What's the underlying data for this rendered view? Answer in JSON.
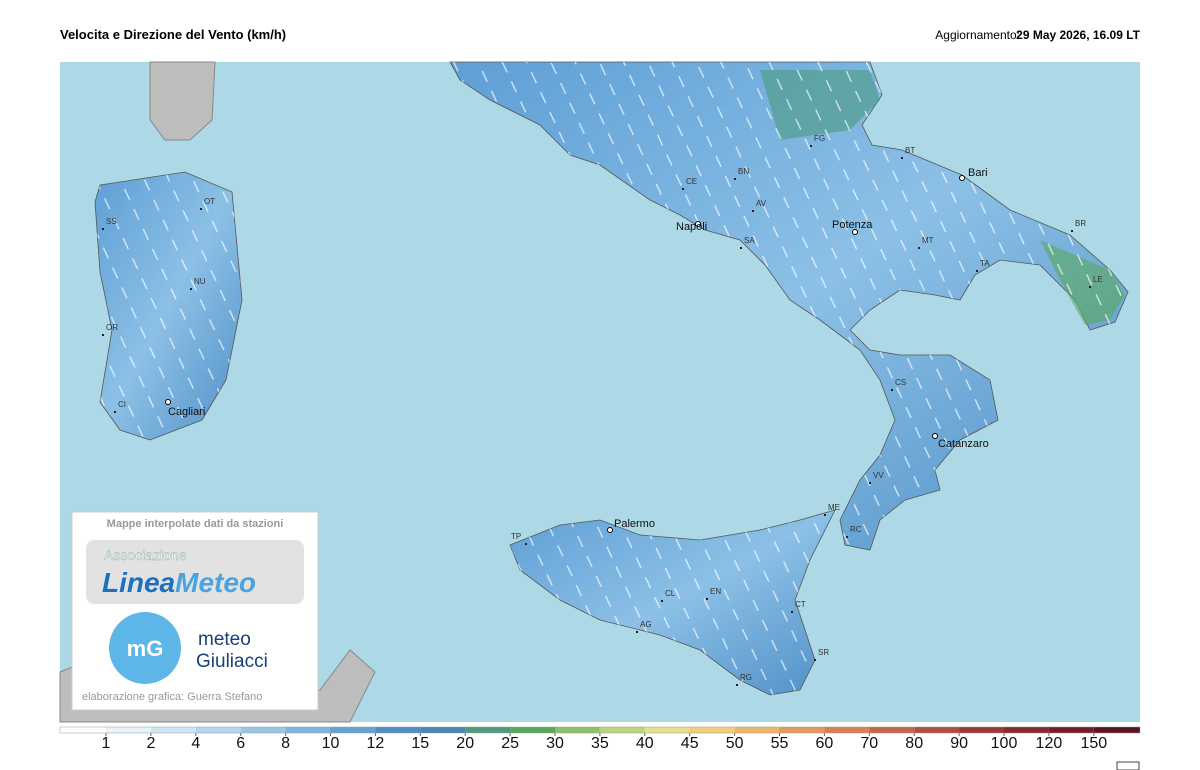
{
  "header": {
    "title": "Velocita e Direzione del Vento  (km/h)",
    "update_label": "Aggiornamento:",
    "update_time": "29 May 2026, 16.09 LT"
  },
  "cities": [
    "Napoli",
    "Potenza",
    "Bari",
    "Catanzaro",
    "Palermo",
    "Cagliari"
  ],
  "provinces": [
    "OT",
    "SS",
    "NU",
    "OR",
    "CI",
    "CE",
    "BN",
    "AV",
    "SA",
    "FG",
    "BT",
    "BR",
    "MT",
    "TA",
    "LE",
    "CS",
    "VV",
    "RC",
    "ME",
    "TP",
    "CL",
    "EN",
    "CT",
    "AG",
    "SR",
    "RG"
  ],
  "credits": {
    "caption": "Mappe interpolate dati da stazioni",
    "association": "Associazione",
    "logo1_a": "Linea",
    "logo1_b": "Meteo",
    "logo2_icon": "mG",
    "logo2_a": "meteo",
    "logo2_b": "Giuliacci",
    "author": "elaborazione grafica: Guerra Stefano"
  },
  "legend": {
    "ticks": [
      1,
      2,
      4,
      6,
      8,
      10,
      12,
      15,
      20,
      25,
      30,
      35,
      40,
      45,
      50,
      55,
      60,
      70,
      80,
      90,
      100,
      120,
      150
    ],
    "colors": [
      "#ffffff",
      "#e8f4fa",
      "#cfe6f5",
      "#b4d6ee",
      "#9ac6e6",
      "#80b4dd",
      "#66a2d3",
      "#4f8fc7",
      "#4a86b8",
      "#4d9a7e",
      "#5aa85c",
      "#8cc06a",
      "#b9d67d",
      "#e4e08a",
      "#f1cf79",
      "#eeb46a",
      "#e49a5e",
      "#d97f52",
      "#c86448",
      "#b34b3f",
      "#9d3737",
      "#88282f",
      "#741d28",
      "#5e1322"
    ]
  }
}
